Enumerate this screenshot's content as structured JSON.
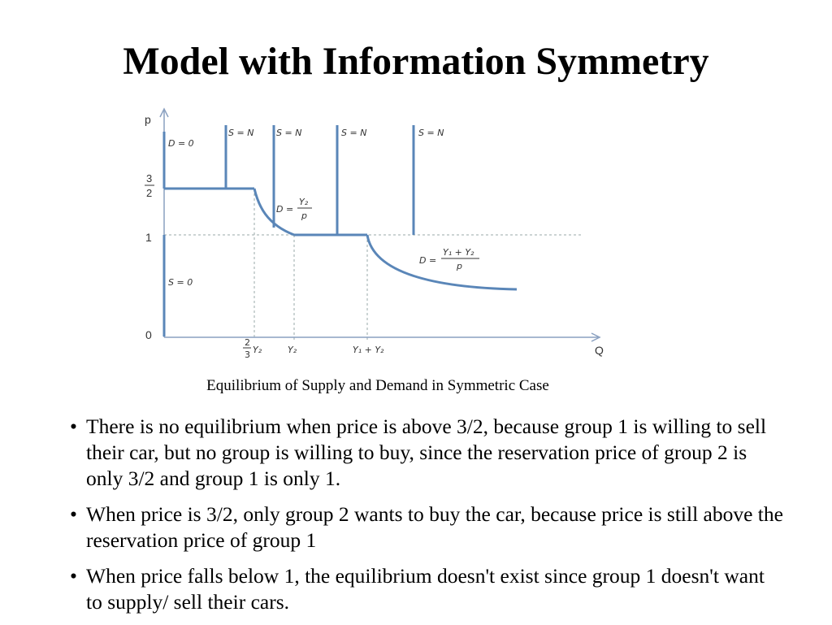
{
  "title": "Model with Information Symmetry",
  "figure": {
    "caption": "Equilibrium of Supply and Demand in Symmetric Case",
    "y_axis_label": "p",
    "x_axis_label": "Q",
    "y_ticks": {
      "top_num": "3",
      "top_den": "2",
      "one": "1",
      "zero": "0"
    },
    "x_ticks": {
      "t1_num": "2",
      "t1_den": "3",
      "t1_var": "Y₂",
      "t2": "Y₂",
      "t3": "Y₁ + Y₂"
    },
    "labels": {
      "d_zero": "D = 0",
      "s_zero": "S = 0",
      "s_n": "S = N",
      "d2_lhs": "D =",
      "d2_num": "Y₂",
      "d2_den": "p",
      "d12_lhs": "D =",
      "d12_num": "Y₁ + Y₂",
      "d12_den": "p"
    },
    "line_color": "#5a86b8"
  },
  "bullets": [
    "There is no equilibrium when price is above 3/2, because group 1 is willing to sell their car, but no group is willing to buy, since the reservation price of group 2 is only 3/2 and group 1 is only 1.",
    "When price is 3/2, only group 2 wants to buy the car, because price is still above the reservation price of group 1",
    "When price falls below 1, the equilibrium doesn't exist since group 1 doesn't want to supply/ sell their cars."
  ]
}
